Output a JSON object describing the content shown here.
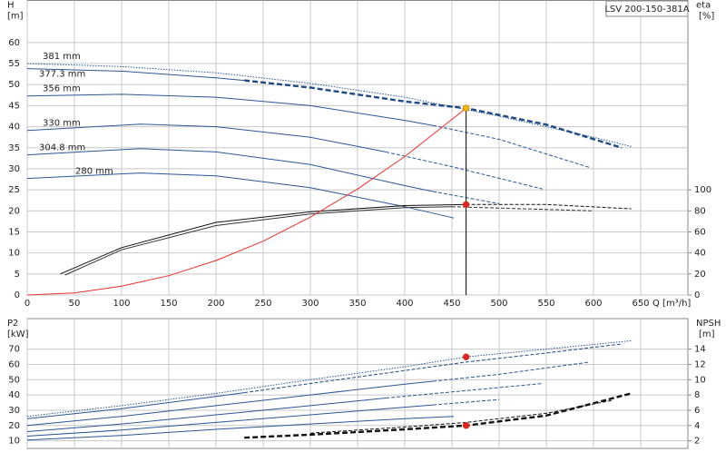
{
  "chart_data": [
    {
      "type": "line",
      "title": "LSV 200-150-381A",
      "y_label": "H",
      "y_unit": "[m]",
      "y2_label": "eta",
      "y2_unit": "[%]",
      "x_label": "Q [m³/h]",
      "xlim": [
        0,
        700
      ],
      "xticks": [
        0,
        50,
        100,
        150,
        200,
        250,
        300,
        350,
        400,
        450,
        500,
        550,
        600,
        650
      ],
      "ylim": [
        0,
        70
      ],
      "yticks": [
        0,
        5,
        10,
        15,
        20,
        25,
        30,
        35,
        40,
        45,
        50,
        55,
        60
      ],
      "y2lim": [
        0,
        280
      ],
      "y2ticks": [
        0,
        20,
        40,
        60,
        80,
        100
      ],
      "grid": true,
      "series": [
        {
          "name": "381 mm",
          "color": "#2b5797",
          "style": "dotted",
          "x": [
            0,
            100,
            200,
            300,
            400,
            500,
            600,
            640
          ],
          "values": [
            55,
            54.3,
            52.8,
            50.3,
            47,
            42.5,
            37.5,
            35.3
          ]
        },
        {
          "name": "377.3 mm",
          "color": "#2b5797",
          "style": "solid",
          "x": [
            0,
            100,
            200,
            230
          ],
          "values": [
            53.8,
            53.2,
            51.6,
            51
          ]
        },
        {
          "color": "#1f4a85",
          "style": "bold-dashed",
          "x": [
            230,
            300,
            400,
            465,
            550,
            630
          ],
          "values": [
            51,
            49.3,
            46,
            44.4,
            40.5,
            35
          ]
        },
        {
          "name": "356 mm",
          "color": "#2b5797",
          "style": "solid",
          "x": [
            0,
            100,
            200,
            300,
            400,
            430
          ],
          "values": [
            47.3,
            47.7,
            47,
            45,
            41.5,
            40.3
          ]
        },
        {
          "color": "#2b5797",
          "style": "dashed",
          "x": [
            430,
            500,
            596
          ],
          "values": [
            40.3,
            37,
            30.3
          ]
        },
        {
          "name": "330 mm",
          "color": "#2b5797",
          "style": "solid",
          "x": [
            0,
            120,
            200,
            300,
            380
          ],
          "values": [
            39.1,
            40.6,
            40,
            37.5,
            34
          ]
        },
        {
          "color": "#2b5797",
          "style": "dashed",
          "x": [
            380,
            450,
            546
          ],
          "values": [
            34,
            30.5,
            25.2
          ]
        },
        {
          "name": "304.8 mm",
          "color": "#2b5797",
          "style": "solid",
          "x": [
            0,
            120,
            200,
            300,
            400,
            430
          ],
          "values": [
            33.3,
            34.8,
            34,
            31,
            26,
            24.6
          ]
        },
        {
          "color": "#2b5797",
          "style": "dashed",
          "x": [
            430,
            500
          ],
          "values": [
            24.6,
            21.7
          ]
        },
        {
          "name": "280 mm",
          "color": "#2b5797",
          "style": "solid",
          "x": [
            0,
            120,
            200,
            300,
            400,
            452
          ],
          "values": [
            27.7,
            29,
            28.3,
            25.5,
            21,
            18.3
          ]
        },
        {
          "color": "#111111",
          "style": "solid",
          "axis": "y2",
          "x": [
            35,
            100,
            200,
            300,
            400,
            465
          ],
          "values": [
            20,
            45,
            69,
            79,
            85,
            86
          ]
        },
        {
          "color": "#111111",
          "style": "dashed",
          "axis": "y2",
          "x": [
            465,
            550,
            640
          ],
          "values": [
            86,
            86,
            82
          ]
        },
        {
          "color": "#333333",
          "style": "solid",
          "axis": "y2",
          "x": [
            40,
            100,
            200,
            300,
            400,
            450
          ],
          "values": [
            19,
            43,
            66,
            77,
            83,
            84
          ]
        },
        {
          "color": "#333333",
          "style": "dashed",
          "axis": "y2",
          "x": [
            450,
            600
          ],
          "values": [
            84,
            80
          ]
        },
        {
          "color": "#e83030",
          "style": "solid",
          "x": [
            0,
            50,
            100,
            150,
            200,
            250,
            300,
            350,
            400,
            465
          ],
          "values": [
            0,
            0.5,
            2.1,
            4.6,
            8.2,
            12.8,
            18.5,
            25.2,
            32.9,
            44.4
          ]
        }
      ],
      "points": [
        {
          "x": 465,
          "y": 44.4,
          "color": "#f5b800",
          "drop_line": true
        },
        {
          "x": 465,
          "y": 86,
          "axis": "y2",
          "color": "#e82020"
        }
      ]
    },
    {
      "type": "line",
      "y_label": "P2",
      "y_unit": "[kW]",
      "y2_label": "NPSH",
      "y2_unit": "[m]",
      "xlim": [
        0,
        700
      ],
      "ylim": [
        5,
        90
      ],
      "yticks": [
        10,
        20,
        30,
        40,
        50,
        60,
        70
      ],
      "y2lim": [
        1,
        18
      ],
      "y2ticks": [
        2,
        4,
        6,
        8,
        10,
        12,
        14
      ],
      "grid": true,
      "series": [
        {
          "color": "#2b5797",
          "style": "dotted",
          "x": [
            0,
            100,
            200,
            300,
            400,
            465,
            550,
            640
          ],
          "values": [
            26,
            33,
            41,
            50,
            58.5,
            64.9,
            70,
            75.5
          ]
        },
        {
          "color": "#2b5797",
          "style": "solid",
          "x": [
            0,
            100,
            200,
            230
          ],
          "values": [
            24.5,
            31,
            39,
            41.5
          ]
        },
        {
          "color": "#1f4a85",
          "style": "dashed",
          "x": [
            230,
            300,
            400,
            465,
            550,
            631
          ],
          "values": [
            41.5,
            47.5,
            56,
            61.5,
            67.5,
            73.5
          ]
        },
        {
          "color": "#2b5797",
          "style": "solid",
          "x": [
            0,
            100,
            200,
            300,
            400,
            430
          ],
          "values": [
            20,
            26,
            33,
            40,
            47,
            49
          ]
        },
        {
          "color": "#2b5797",
          "style": "dashed",
          "x": [
            430,
            500,
            596
          ],
          "values": [
            49,
            53.5,
            61.5
          ]
        },
        {
          "color": "#2b5797",
          "style": "solid",
          "x": [
            0,
            100,
            200,
            300,
            380
          ],
          "values": [
            16,
            21,
            27,
            33,
            38
          ]
        },
        {
          "color": "#2b5797",
          "style": "dashed",
          "x": [
            380,
            450,
            546
          ],
          "values": [
            38,
            42,
            47.5
          ]
        },
        {
          "color": "#2b5797",
          "style": "solid",
          "x": [
            0,
            100,
            200,
            300,
            400,
            430
          ],
          "values": [
            13,
            17,
            22,
            27,
            32,
            33.5
          ]
        },
        {
          "color": "#2b5797",
          "style": "dashed",
          "x": [
            430,
            500
          ],
          "values": [
            33.5,
            37
          ]
        },
        {
          "color": "#2b5797",
          "style": "solid",
          "x": [
            0,
            100,
            200,
            300,
            400,
            452
          ],
          "values": [
            10.5,
            13.5,
            17.5,
            21,
            24.5,
            26
          ]
        },
        {
          "color": "#111111",
          "style": "bold-dashed",
          "axis": "y2",
          "x": [
            230,
            300,
            400,
            465,
            550,
            640
          ],
          "values": [
            2.4,
            2.8,
            3.5,
            4.0,
            5.3,
            8.2
          ]
        },
        {
          "color": "#111111",
          "style": "dashed",
          "axis": "y2",
          "x": [
            300,
            400,
            465,
            550,
            620
          ],
          "values": [
            3,
            3.8,
            4.4,
            5.6,
            7.3
          ]
        }
      ],
      "points": [
        {
          "x": 465,
          "y": 64.9,
          "color": "#e82020"
        },
        {
          "x": 465,
          "y": 4.0,
          "axis": "y2",
          "color": "#e82020"
        }
      ]
    }
  ]
}
